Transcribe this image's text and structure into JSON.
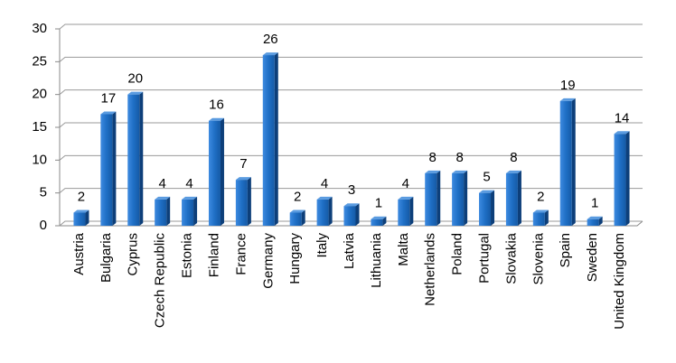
{
  "chart_data": {
    "type": "bar",
    "categories": [
      "Austria",
      "Bulgaria",
      "Cyprus",
      "Czech Republic",
      "Estonia",
      "Finland",
      "France",
      "Germany",
      "Hungary",
      "Italy",
      "Latvia",
      "Lithuania",
      "Malta",
      "Netherlands",
      "Poland",
      "Portugal",
      "Slovakia",
      "Slovenia",
      "Spain",
      "Sweden",
      "United Kingdom"
    ],
    "values": [
      2,
      17,
      20,
      4,
      4,
      16,
      7,
      26,
      2,
      4,
      3,
      1,
      4,
      8,
      8,
      5,
      8,
      2,
      19,
      1,
      14
    ],
    "color": "#1f6fc5",
    "ylim": [
      0,
      30
    ],
    "yticks": [
      0,
      5,
      10,
      15,
      20,
      25,
      30
    ],
    "grid": true
  }
}
